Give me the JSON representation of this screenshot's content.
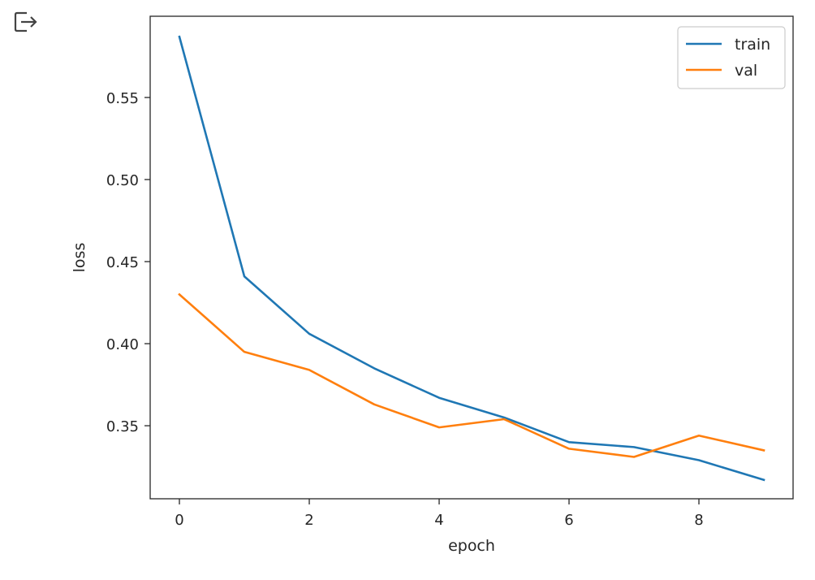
{
  "cell": {
    "output_icon": "output-redirect-icon"
  },
  "colors": {
    "train": "#1f77b4",
    "val": "#ff7f0e",
    "axis": "#262626",
    "legend_border": "#cccccc"
  },
  "chart_data": {
    "type": "line",
    "title": "",
    "xlabel": "epoch",
    "ylabel": "loss",
    "x": [
      0,
      1,
      2,
      3,
      4,
      5,
      6,
      7,
      8,
      9
    ],
    "xlim": [
      -0.45,
      9.45
    ],
    "ylim": [
      0.3055,
      0.5995
    ],
    "xticks": [
      0,
      2,
      4,
      6,
      8
    ],
    "xtick_labels": [
      "0",
      "2",
      "4",
      "6",
      "8"
    ],
    "yticks": [
      0.35,
      0.4,
      0.45,
      0.5,
      0.55
    ],
    "ytick_labels": [
      "0.35",
      "0.40",
      "0.45",
      "0.50",
      "0.55"
    ],
    "grid": false,
    "legend_position": "top-right",
    "series": [
      {
        "name": "train",
        "values": [
          0.587,
          0.441,
          0.406,
          0.385,
          0.367,
          0.355,
          0.34,
          0.337,
          0.329,
          0.317
        ]
      },
      {
        "name": "val",
        "values": [
          0.43,
          0.395,
          0.384,
          0.363,
          0.349,
          0.354,
          0.336,
          0.331,
          0.344,
          0.335
        ]
      }
    ]
  }
}
